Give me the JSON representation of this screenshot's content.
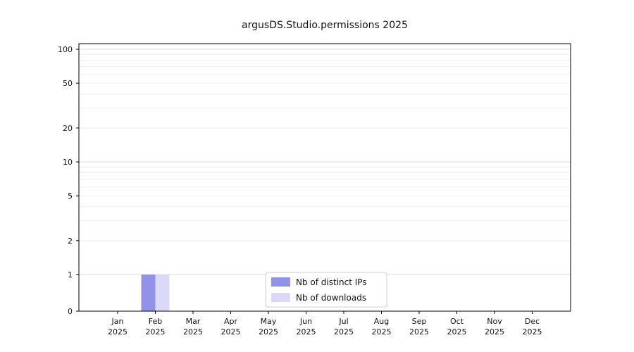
{
  "chart_data": {
    "type": "bar",
    "title": "argusDS.Studio.permissions 2025",
    "categories": [
      {
        "month": "Jan",
        "year": "2025"
      },
      {
        "month": "Feb",
        "year": "2025"
      },
      {
        "month": "Mar",
        "year": "2025"
      },
      {
        "month": "Apr",
        "year": "2025"
      },
      {
        "month": "May",
        "year": "2025"
      },
      {
        "month": "Jun",
        "year": "2025"
      },
      {
        "month": "Jul",
        "year": "2025"
      },
      {
        "month": "Aug",
        "year": "2025"
      },
      {
        "month": "Sep",
        "year": "2025"
      },
      {
        "month": "Oct",
        "year": "2025"
      },
      {
        "month": "Nov",
        "year": "2025"
      },
      {
        "month": "Dec",
        "year": "2025"
      }
    ],
    "series": [
      {
        "name": "Nb of distinct IPs",
        "color": "#9292ea",
        "values": [
          0,
          1,
          0,
          0,
          0,
          0,
          0,
          0,
          0,
          0,
          0,
          0
        ]
      },
      {
        "name": "Nb of downloads",
        "color": "#dadaf8",
        "values": [
          0,
          1,
          0,
          0,
          0,
          0,
          0,
          0,
          0,
          0,
          0,
          0
        ]
      }
    ],
    "yscale": "log-with-zero",
    "yticks": [
      0,
      1,
      2,
      5,
      10,
      20,
      50,
      100
    ],
    "ylim": [
      0,
      112
    ],
    "grid": true,
    "legend_position": "bottom-center"
  },
  "colors": {
    "grid_major": "#d9d9d9",
    "grid_minor": "#ebebeb",
    "axis": "#000000",
    "text": "#111111",
    "legend_border": "#cccccc",
    "legend_fill": "#ffffff"
  }
}
